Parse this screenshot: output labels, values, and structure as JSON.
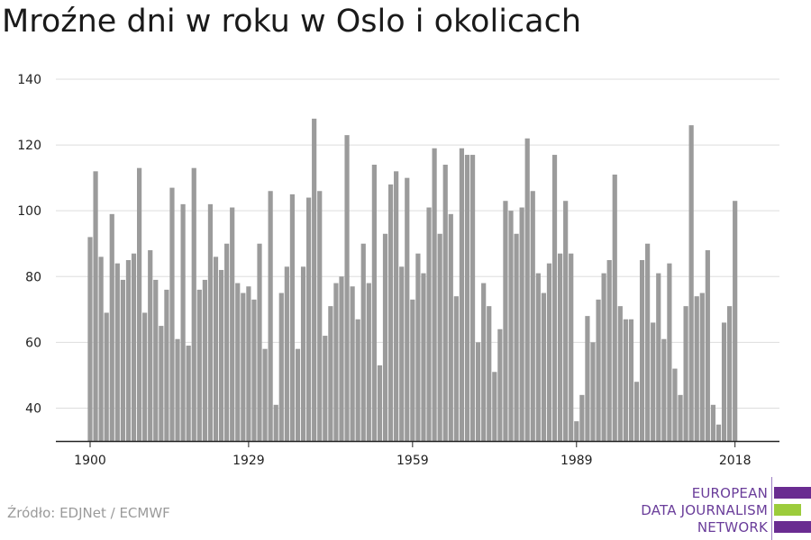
{
  "title": "Mroźne dni w roku w Oslo i okolicach",
  "source": "Źródło: EDJNet / ECMWF",
  "logo": {
    "line1": "EUROPEAN",
    "line2": "DATA JOURNALISM",
    "line3": "NETWORK",
    "bar_colors": [
      "#6a2c91",
      "#9ccc3c",
      "#6a2c91"
    ]
  },
  "colors": {
    "bar": "#9b9b9b",
    "grid": "#dddddd",
    "axis": "#222222",
    "logo_text": "#6a3d9a"
  },
  "chart_data": {
    "type": "bar",
    "title": "Mroźne dni w roku w Oslo i okolicach",
    "xlabel": "",
    "ylabel": "",
    "grid": true,
    "ylim": [
      30,
      140
    ],
    "yticks": [
      40,
      60,
      80,
      100,
      120,
      140
    ],
    "xtick_labels": [
      "1900",
      "1929",
      "1959",
      "1989",
      "2018"
    ],
    "x": [
      1900,
      1901,
      1902,
      1903,
      1904,
      1905,
      1906,
      1907,
      1908,
      1909,
      1910,
      1911,
      1912,
      1913,
      1914,
      1915,
      1916,
      1917,
      1918,
      1919,
      1920,
      1921,
      1922,
      1923,
      1924,
      1925,
      1926,
      1927,
      1928,
      1929,
      1930,
      1931,
      1932,
      1933,
      1934,
      1935,
      1936,
      1937,
      1938,
      1939,
      1940,
      1941,
      1942,
      1943,
      1944,
      1945,
      1946,
      1947,
      1948,
      1949,
      1950,
      1951,
      1952,
      1953,
      1954,
      1955,
      1956,
      1957,
      1958,
      1959,
      1960,
      1961,
      1962,
      1963,
      1964,
      1965,
      1966,
      1967,
      1968,
      1969,
      1970,
      1971,
      1972,
      1973,
      1974,
      1975,
      1976,
      1977,
      1978,
      1979,
      1980,
      1981,
      1982,
      1983,
      1984,
      1985,
      1986,
      1987,
      1988,
      1989,
      1990,
      1991,
      1992,
      1993,
      1994,
      1995,
      1996,
      1997,
      1998,
      1999,
      2000,
      2001,
      2002,
      2003,
      2004,
      2005,
      2006,
      2007,
      2008,
      2009,
      2010,
      2011,
      2012,
      2013,
      2014,
      2015,
      2016,
      2017,
      2018
    ],
    "values": [
      92,
      112,
      86,
      69,
      99,
      84,
      79,
      85,
      87,
      113,
      69,
      88,
      79,
      65,
      76,
      107,
      61,
      102,
      59,
      113,
      76,
      79,
      102,
      86,
      82,
      90,
      101,
      78,
      75,
      77,
      73,
      90,
      58,
      106,
      41,
      75,
      83,
      105,
      58,
      83,
      104,
      128,
      106,
      62,
      71,
      78,
      80,
      123,
      77,
      67,
      90,
      78,
      114,
      53,
      93,
      108,
      112,
      83,
      110,
      73,
      87,
      81,
      101,
      119,
      93,
      114,
      99,
      74,
      119,
      117,
      117,
      60,
      78,
      71,
      51,
      64,
      103,
      100,
      93,
      101,
      122,
      106,
      81,
      75,
      84,
      117,
      87,
      103,
      87,
      36,
      44,
      68,
      60,
      73,
      81,
      85,
      111,
      71,
      67,
      67,
      48,
      85,
      90,
      66,
      81,
      61,
      84,
      52,
      44,
      71,
      126,
      74,
      75,
      88,
      41,
      35,
      66,
      71,
      103
    ]
  }
}
